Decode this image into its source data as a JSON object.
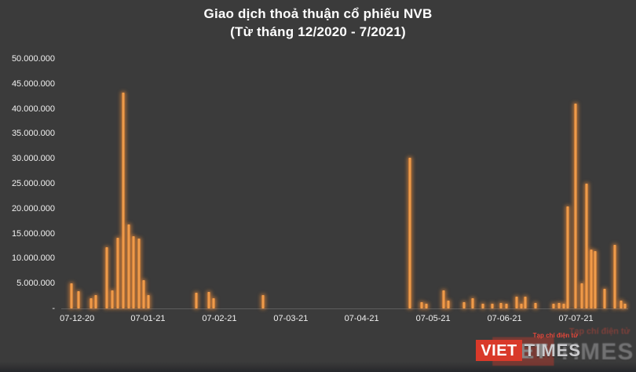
{
  "page": {
    "background": "#3b3b3b"
  },
  "chart_data": {
    "type": "bar",
    "title": "Giao dịch thoả thuận cổ phiếu NVB",
    "subtitle": "(Từ tháng 12/2020 - 7/2021)",
    "xlabel": "",
    "ylabel": "",
    "ylim": [
      0,
      50000000
    ],
    "grid": false,
    "legend": false,
    "bar_color": "#f79646",
    "background_color": "#3b3b3b",
    "text_color": "#ffffff",
    "y_ticks": [
      {
        "label": "50.000.000",
        "value": 50000000
      },
      {
        "label": "45.000.000",
        "value": 45000000
      },
      {
        "label": "40.000.000",
        "value": 40000000
      },
      {
        "label": "35.000.000",
        "value": 35000000
      },
      {
        "label": "30.000.000",
        "value": 30000000
      },
      {
        "label": "25.000.000",
        "value": 25000000
      },
      {
        "label": "20.000.000",
        "value": 20000000
      },
      {
        "label": "15.000.000",
        "value": 15000000
      },
      {
        "label": "10.000.000",
        "value": 10000000
      },
      {
        "label": "5.000.000",
        "value": 5000000
      },
      {
        "label": "-",
        "value": 0
      }
    ],
    "x_ticks": [
      {
        "label": "07-12-20",
        "pos": 0.028
      },
      {
        "label": "07-01-21",
        "pos": 0.153
      },
      {
        "label": "07-02-21",
        "pos": 0.279
      },
      {
        "label": "07-03-21",
        "pos": 0.405
      },
      {
        "label": "07-04-21",
        "pos": 0.53
      },
      {
        "label": "07-05-21",
        "pos": 0.656
      },
      {
        "label": "07-06-21",
        "pos": 0.782
      },
      {
        "label": "07-07-21",
        "pos": 0.908
      }
    ],
    "bars": [
      {
        "pos": 0.018,
        "value": 5000000
      },
      {
        "pos": 0.031,
        "value": 3500000
      },
      {
        "pos": 0.053,
        "value": 2000000
      },
      {
        "pos": 0.061,
        "value": 2600000
      },
      {
        "pos": 0.08,
        "value": 12200000
      },
      {
        "pos": 0.09,
        "value": 3600000
      },
      {
        "pos": 0.1,
        "value": 14200000
      },
      {
        "pos": 0.109,
        "value": 43300000
      },
      {
        "pos": 0.119,
        "value": 16800000
      },
      {
        "pos": 0.128,
        "value": 14500000
      },
      {
        "pos": 0.137,
        "value": 14000000
      },
      {
        "pos": 0.145,
        "value": 5600000
      },
      {
        "pos": 0.154,
        "value": 2600000
      },
      {
        "pos": 0.238,
        "value": 3200000
      },
      {
        "pos": 0.261,
        "value": 3300000
      },
      {
        "pos": 0.269,
        "value": 2000000
      },
      {
        "pos": 0.356,
        "value": 2600000
      },
      {
        "pos": 0.615,
        "value": 30200000
      },
      {
        "pos": 0.636,
        "value": 1300000
      },
      {
        "pos": 0.644,
        "value": 1000000
      },
      {
        "pos": 0.675,
        "value": 3600000
      },
      {
        "pos": 0.683,
        "value": 1600000
      },
      {
        "pos": 0.71,
        "value": 1300000
      },
      {
        "pos": 0.726,
        "value": 2000000
      },
      {
        "pos": 0.744,
        "value": 900000
      },
      {
        "pos": 0.761,
        "value": 900000
      },
      {
        "pos": 0.776,
        "value": 1100000
      },
      {
        "pos": 0.786,
        "value": 900000
      },
      {
        "pos": 0.803,
        "value": 2300000
      },
      {
        "pos": 0.811,
        "value": 1000000
      },
      {
        "pos": 0.819,
        "value": 2400000
      },
      {
        "pos": 0.836,
        "value": 1100000
      },
      {
        "pos": 0.868,
        "value": 900000
      },
      {
        "pos": 0.878,
        "value": 1100000
      },
      {
        "pos": 0.886,
        "value": 1000000
      },
      {
        "pos": 0.894,
        "value": 20500000
      },
      {
        "pos": 0.907,
        "value": 41000000
      },
      {
        "pos": 0.918,
        "value": 5000000
      },
      {
        "pos": 0.926,
        "value": 25000000
      },
      {
        "pos": 0.935,
        "value": 11800000
      },
      {
        "pos": 0.942,
        "value": 11500000
      },
      {
        "pos": 0.958,
        "value": 4000000
      },
      {
        "pos": 0.976,
        "value": 12800000
      },
      {
        "pos": 0.988,
        "value": 1600000
      },
      {
        "pos": 0.994,
        "value": 1000000
      }
    ]
  },
  "branding": {
    "tagline": "Tạp chí điện tử",
    "name_red": "VIET",
    "name_gray": "TIMES",
    "color_red": "#d9392a",
    "color_gray": "#c9c9cc"
  }
}
